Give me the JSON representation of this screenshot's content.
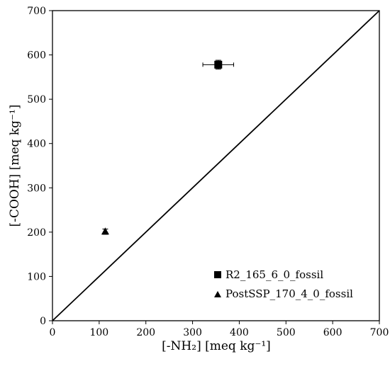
{
  "chart_data": {
    "type": "scatter",
    "title": "",
    "xlabel": "[-NH₂] [meq kg⁻¹]",
    "ylabel": "[-COOH] [meq kg⁻¹]",
    "xlim": [
      0,
      700
    ],
    "ylim": [
      0,
      700
    ],
    "x_ticks": [
      0,
      100,
      200,
      300,
      400,
      500,
      600,
      700
    ],
    "y_ticks": [
      0,
      100,
      200,
      300,
      400,
      500,
      600,
      700
    ],
    "grid": false,
    "legend_position": "bottom-right",
    "series": [
      {
        "name": "R2_165_6_0_fossil",
        "marker": "square",
        "points": [
          {
            "x": 355,
            "y": 578,
            "x_err": 33,
            "y_err": 10
          }
        ]
      },
      {
        "name": "PostSSP_170_4_0_fossil",
        "marker": "triangle",
        "points": [
          {
            "x": 113,
            "y": 201,
            "x_err": 2,
            "y_err": 6
          }
        ]
      }
    ],
    "reference_line": {
      "from": [
        0,
        0
      ],
      "to": [
        700,
        700
      ]
    }
  }
}
